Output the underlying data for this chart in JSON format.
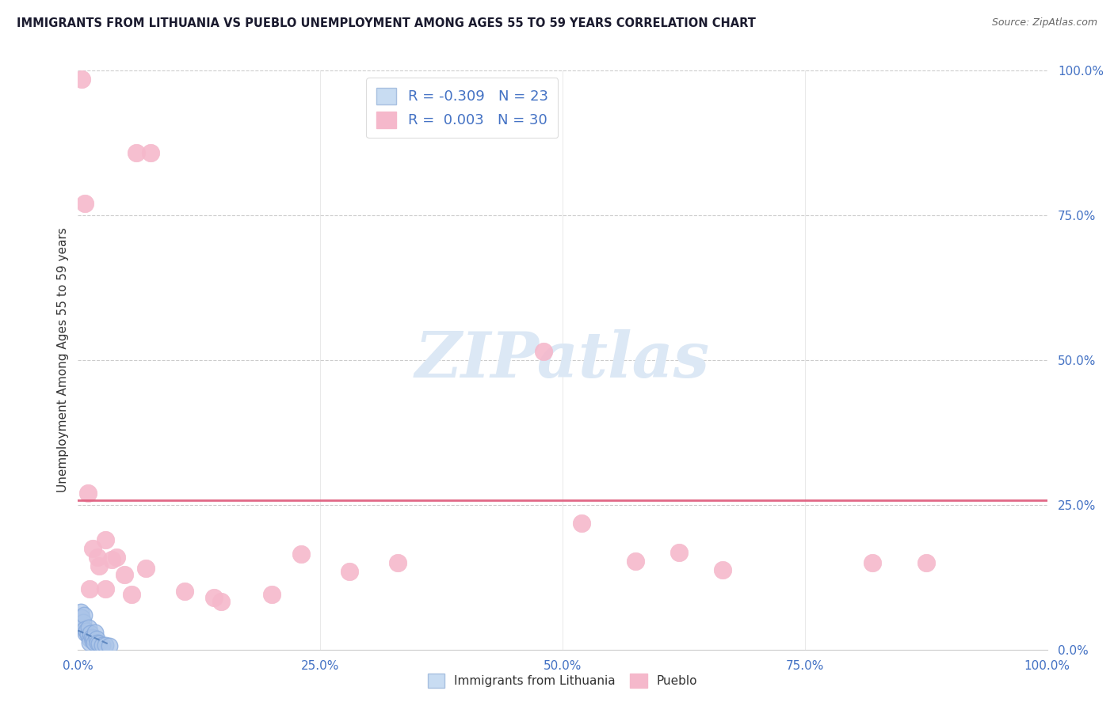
{
  "title": "IMMIGRANTS FROM LITHUANIA VS PUEBLO UNEMPLOYMENT AMONG AGES 55 TO 59 YEARS CORRELATION CHART",
  "source": "Source: ZipAtlas.com",
  "ylabel": "Unemployment Among Ages 55 to 59 years",
  "xmin": 0.0,
  "xmax": 1.0,
  "ymin": 0.0,
  "ymax": 1.0,
  "legend_r_blue": "-0.309",
  "legend_n_blue": "23",
  "legend_r_pink": "0.003",
  "legend_n_pink": "30",
  "blue_color": "#aac4e8",
  "blue_edge": "#88aadc",
  "pink_color": "#f5b8cb",
  "pink_edge": "#f5b8cb",
  "trend_pink_color": "#e06080",
  "trend_blue_color": "#5580bb",
  "grid_color": "#cccccc",
  "axis_label_color": "#4472c4",
  "title_color": "#1a1a2e",
  "source_color": "#666666",
  "watermark_color": "#dce8f5",
  "blue_scatter": [
    [
      0.003,
      0.065
    ],
    [
      0.004,
      0.055
    ],
    [
      0.005,
      0.048
    ],
    [
      0.006,
      0.06
    ],
    [
      0.007,
      0.035
    ],
    [
      0.008,
      0.028
    ],
    [
      0.009,
      0.032
    ],
    [
      0.01,
      0.025
    ],
    [
      0.011,
      0.038
    ],
    [
      0.012,
      0.018
    ],
    [
      0.012,
      0.012
    ],
    [
      0.013,
      0.028
    ],
    [
      0.014,
      0.022
    ],
    [
      0.015,
      0.015
    ],
    [
      0.016,
      0.02
    ],
    [
      0.017,
      0.012
    ],
    [
      0.018,
      0.03
    ],
    [
      0.019,
      0.018
    ],
    [
      0.02,
      0.012
    ],
    [
      0.022,
      0.01
    ],
    [
      0.025,
      0.008
    ],
    [
      0.028,
      0.008
    ],
    [
      0.032,
      0.006
    ]
  ],
  "pink_scatter": [
    [
      0.004,
      0.985
    ],
    [
      0.007,
      0.77
    ],
    [
      0.06,
      0.858
    ],
    [
      0.075,
      0.858
    ],
    [
      0.01,
      0.27
    ],
    [
      0.015,
      0.175
    ],
    [
      0.02,
      0.16
    ],
    [
      0.028,
      0.19
    ],
    [
      0.035,
      0.155
    ],
    [
      0.04,
      0.16
    ],
    [
      0.022,
      0.145
    ],
    [
      0.048,
      0.13
    ],
    [
      0.012,
      0.105
    ],
    [
      0.028,
      0.105
    ],
    [
      0.055,
      0.095
    ],
    [
      0.07,
      0.14
    ],
    [
      0.11,
      0.1
    ],
    [
      0.14,
      0.09
    ],
    [
      0.148,
      0.083
    ],
    [
      0.2,
      0.095
    ],
    [
      0.23,
      0.165
    ],
    [
      0.28,
      0.135
    ],
    [
      0.33,
      0.15
    ],
    [
      0.48,
      0.515
    ],
    [
      0.52,
      0.218
    ],
    [
      0.575,
      0.152
    ],
    [
      0.62,
      0.168
    ],
    [
      0.665,
      0.138
    ],
    [
      0.82,
      0.15
    ],
    [
      0.875,
      0.15
    ]
  ],
  "pink_trend_y": 0.258,
  "blue_trend_x": [
    0.0,
    0.032
  ],
  "blue_trend_y": [
    0.033,
    0.009
  ]
}
